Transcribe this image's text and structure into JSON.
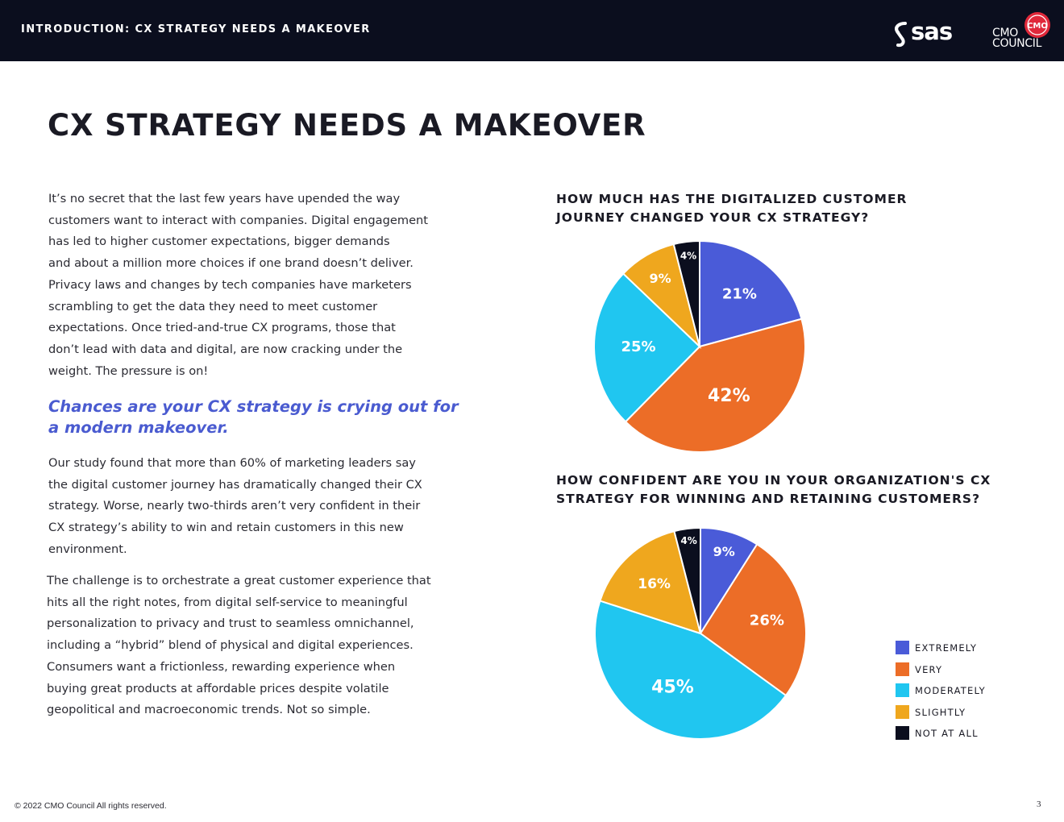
{
  "header": {
    "section_label": "INTRODUCTION: CX STRATEGY NEEDS A MAKEOVER",
    "logos": [
      {
        "name": "sas-logo",
        "text": "sas"
      },
      {
        "name": "cmo-council-logo",
        "lines": [
          "CMO",
          "COUNCIL"
        ],
        "mark": "CMO"
      }
    ]
  },
  "page_title": "CX STRATEGY NEEDS A MAKEOVER",
  "body": {
    "intro_lines": [
      "It’s no secret that the last few years have upended the way",
      "customers want to interact with companies. Digital engagement",
      "has led to higher customer expectations, bigger demands",
      "and about a million more choices if one brand doesn’t deliver.",
      "Privacy laws and changes by tech companies have marketers",
      "scrambling to get the data they need to meet customer",
      "expectations. Once tried-and-true CX programs, those that",
      "don’t lead with data and digital, are now cracking under the",
      "weight. The pressure is on!"
    ],
    "callout_lines": [
      "Chances are your CX strategy is crying out for",
      "a modern makeover."
    ],
    "study_lines": [
      "Our study found that more than 60% of marketing leaders say",
      "the digital customer journey has dramatically changed their CX",
      "strategy. Worse, nearly two-thirds aren’t very confident in their",
      "CX strategy’s ability to win and retain customers in this new",
      "environment."
    ],
    "challenge_lines": [
      "The challenge is to orchestrate a great customer experience that",
      "hits all the right notes, from digital self-service to meaningful",
      "personalization to privacy and trust to seamless omnichannel,",
      "including a “hybrid” blend of physical and digital experiences.",
      "Consumers want a frictionless, rewarding experience when",
      "buying great products at affordable prices despite volatile",
      "geopolitical and macroeconomic trends. Not so simple."
    ]
  },
  "chart_data": [
    {
      "type": "pie",
      "title_lines": [
        "HOW MUCH HAS THE DIGITALIZED CUSTOMER",
        "JOURNEY CHANGED YOUR CX STRATEGY?"
      ],
      "categories": [
        "EXTREMELY",
        "VERY",
        "MODERATELY",
        "SLIGHTLY",
        "NOT AT ALL"
      ],
      "values": [
        21,
        42,
        25,
        9,
        4
      ],
      "labels": [
        "21%",
        "42%",
        "25%",
        "9%",
        "4%"
      ],
      "start": "12 o'clock, clockwise"
    },
    {
      "type": "pie",
      "title_lines": [
        "HOW CONFIDENT ARE YOU IN YOUR ORGANIZATION'S CX",
        "STRATEGY FOR WINNING AND RETAINING CUSTOMERS?"
      ],
      "categories": [
        "EXTREMELY",
        "VERY",
        "MODERATELY",
        "SLIGHTLY",
        "NOT AT ALL"
      ],
      "values": [
        9,
        26,
        45,
        16,
        4
      ],
      "labels": [
        "9%",
        "26%",
        "45%",
        "16%",
        "4%"
      ],
      "start": "12 o'clock, clockwise"
    }
  ],
  "legend": {
    "placement": "bottom-right",
    "items": [
      {
        "label": "EXTREMELY",
        "color": "#4a5bd8"
      },
      {
        "label": "VERY",
        "color": "#ec6d27"
      },
      {
        "label": "MODERATELY",
        "color": "#20c6f0"
      },
      {
        "label": "SLIGHTLY",
        "color": "#efa71e"
      },
      {
        "label": "NOT AT ALL",
        "color": "#0b0e1e"
      }
    ]
  },
  "colors": {
    "header_bg": "#0b0e1e",
    "accent_blue": "#4a5bd0",
    "cmo_red": "#e0283a"
  },
  "footer": {
    "copyright": "© 2022 CMO Council  All rights reserved.",
    "page_number": "3"
  }
}
